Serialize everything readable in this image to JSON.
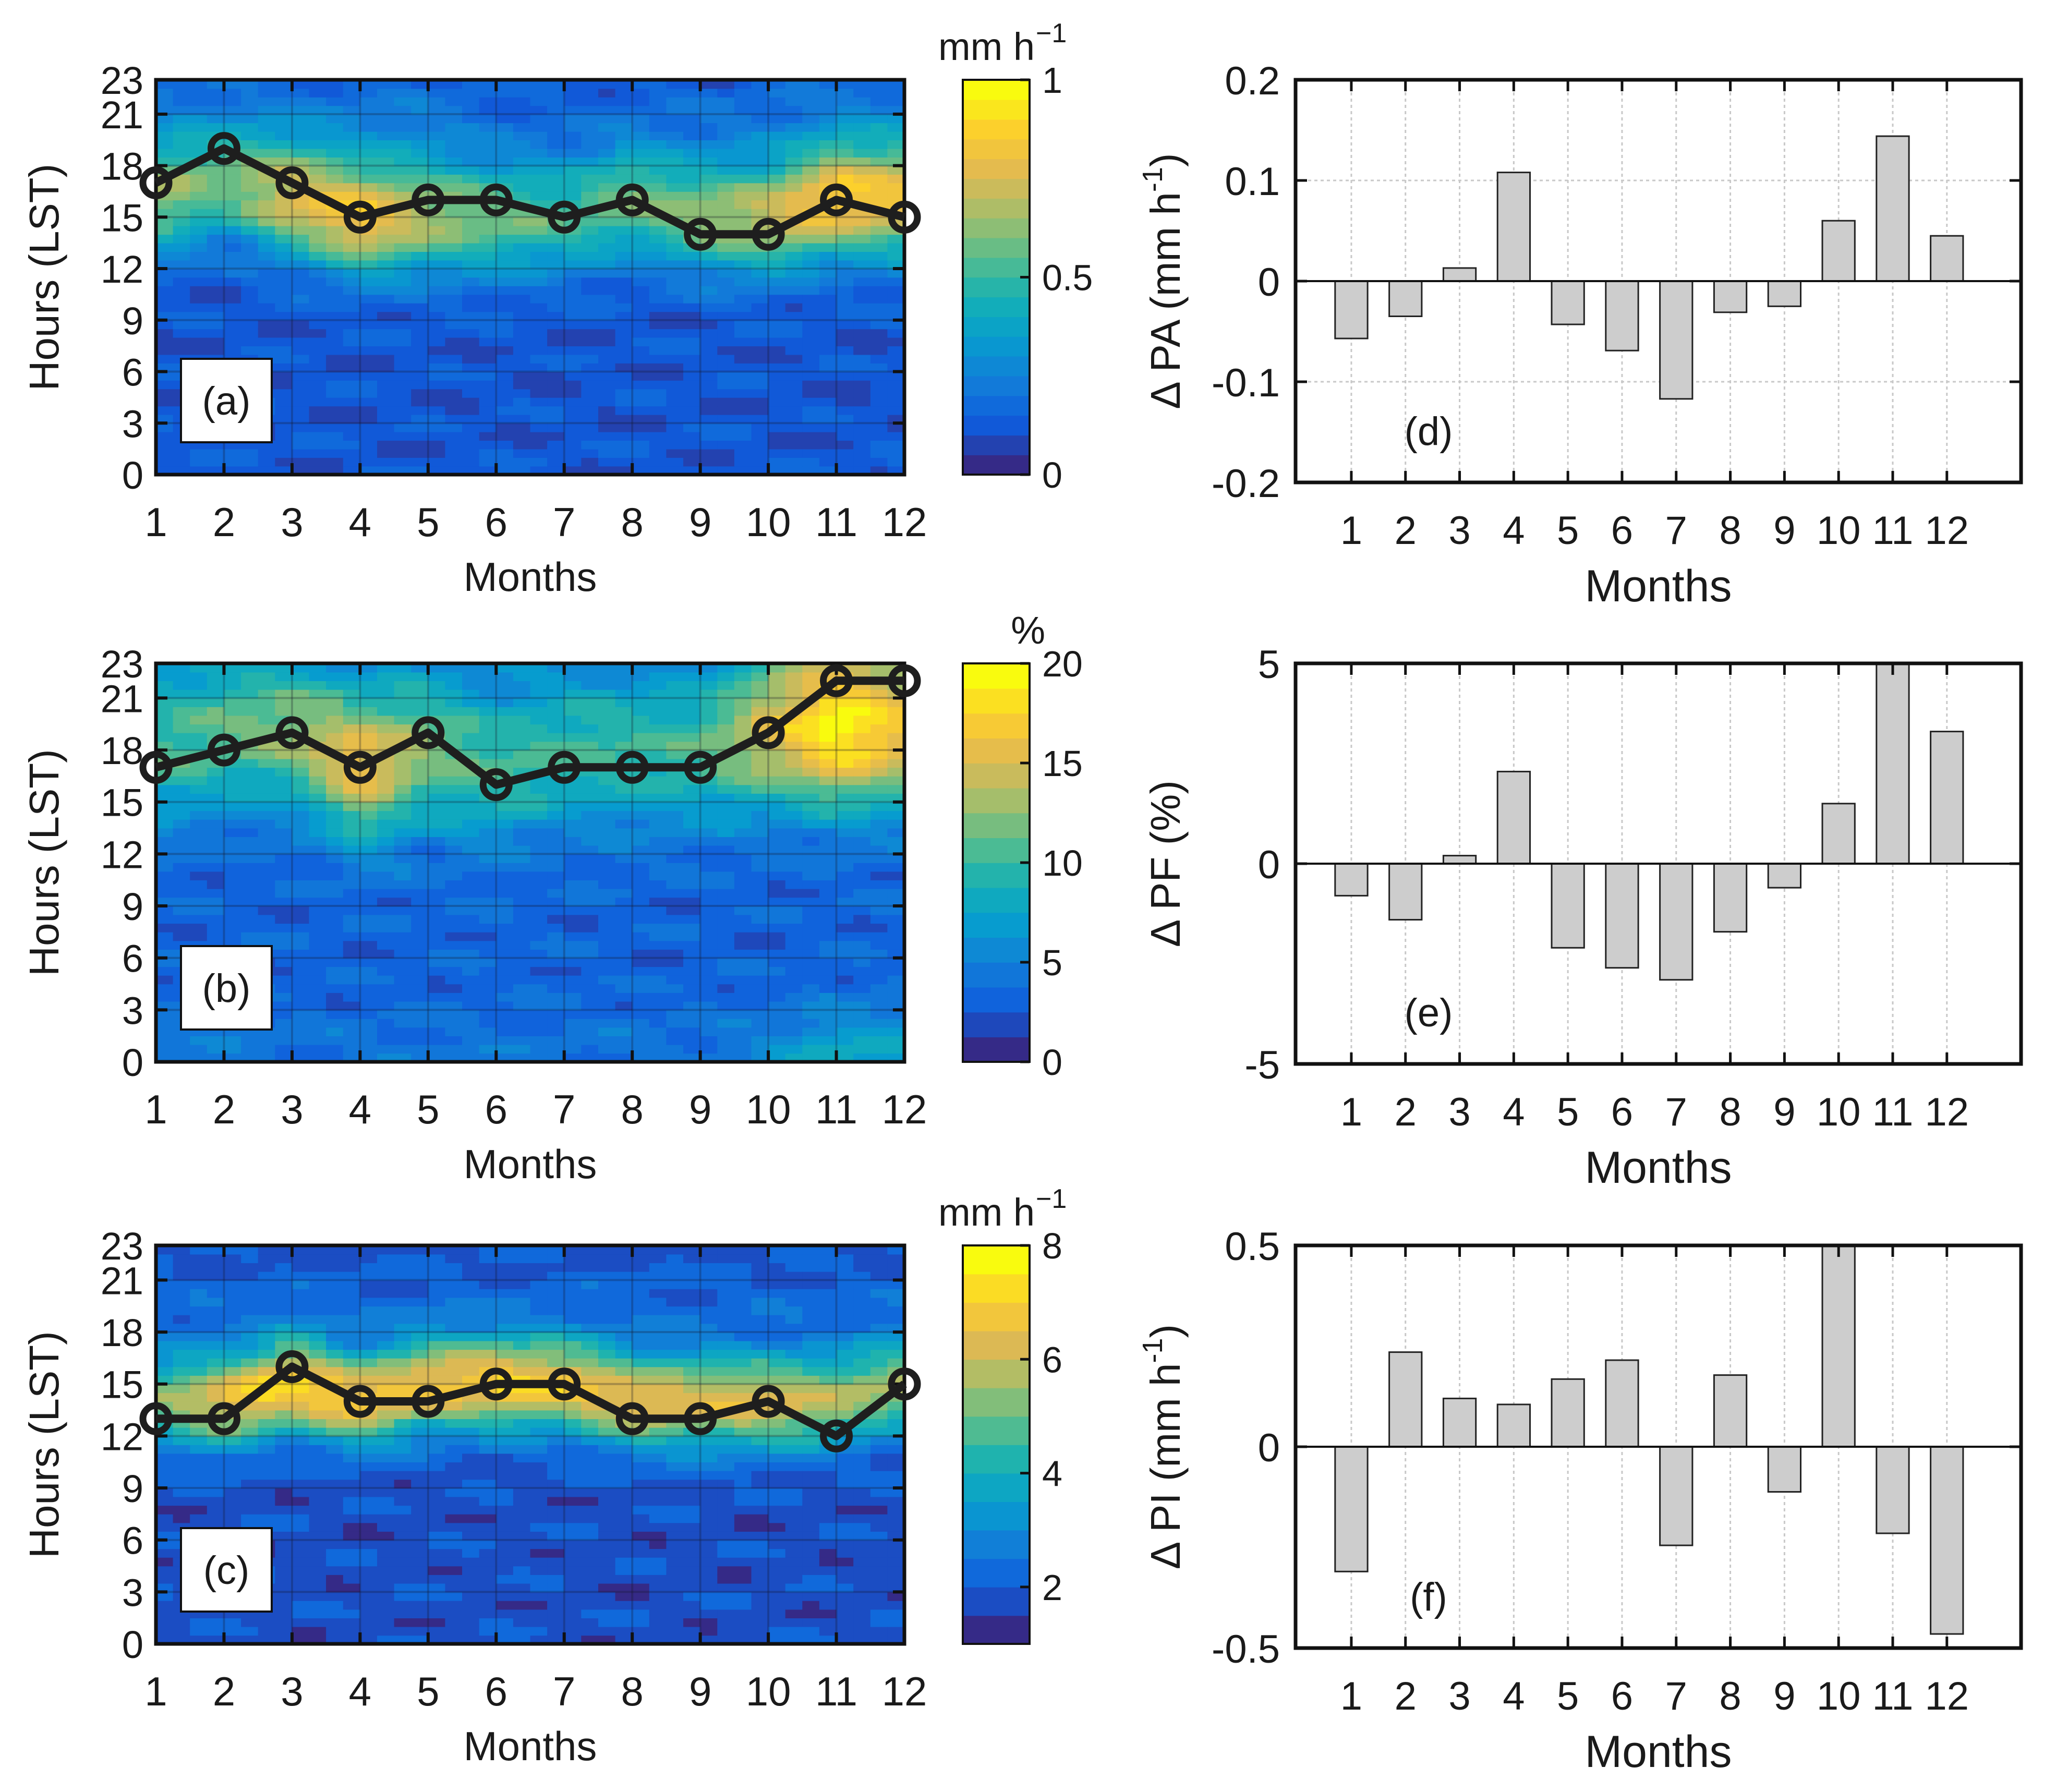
{
  "figure": {
    "background": "#ffffff"
  },
  "chart_data": [
    {
      "panel": "a",
      "type": "heatmap",
      "panel_label": "(a)",
      "xlabel": "Months",
      "ylabel": "Hours (LST)",
      "x_ticks": [
        "1",
        "2",
        "3",
        "4",
        "5",
        "6",
        "7",
        "8",
        "9",
        "10",
        "11",
        "12"
      ],
      "y_ticks": [
        "0",
        "3",
        "6",
        "9",
        "12",
        "15",
        "18",
        "21",
        "23"
      ],
      "xlim": [
        1,
        12
      ],
      "ylim": [
        0,
        23
      ],
      "colorbar": {
        "unit": "mm h",
        "unit_sup": "−1",
        "ticks": [
          "0",
          "0.5",
          "1"
        ],
        "range": [
          0,
          1
        ],
        "levels": 20
      },
      "peak_hours": [
        17,
        19,
        17,
        15,
        16,
        16,
        15,
        16,
        14,
        14,
        16,
        15
      ],
      "surface": {
        "band_center": [
          16,
          17,
          16,
          15,
          15,
          15,
          15,
          16,
          15,
          15,
          16,
          16
        ],
        "band_peak": [
          0.62,
          0.55,
          0.75,
          0.86,
          0.66,
          0.58,
          0.52,
          0.58,
          0.62,
          0.72,
          0.86,
          0.8
        ],
        "band_width": 3.2,
        "night_peak": [
          0.3,
          0.25,
          0.3,
          0.3,
          0.3,
          0.2,
          0.18,
          0.2,
          0.22,
          0.25,
          0.3,
          0.3
        ],
        "night_center": 20,
        "background": 0.12
      }
    },
    {
      "panel": "b",
      "type": "heatmap",
      "panel_label": "(b)",
      "xlabel": "Months",
      "ylabel": "Hours (LST)",
      "x_ticks": [
        "1",
        "2",
        "3",
        "4",
        "5",
        "6",
        "7",
        "8",
        "9",
        "10",
        "11",
        "12"
      ],
      "y_ticks": [
        "0",
        "3",
        "6",
        "9",
        "12",
        "15",
        "18",
        "21",
        "23"
      ],
      "xlim": [
        1,
        12
      ],
      "ylim": [
        0,
        23
      ],
      "colorbar": {
        "unit": "%",
        "unit_sup": "",
        "ticks": [
          "0",
          "5",
          "10",
          "15",
          "20"
        ],
        "range": [
          0,
          20
        ],
        "levels": 16
      },
      "peak_hours": [
        17,
        18,
        19,
        17,
        19,
        16,
        17,
        17,
        17,
        19,
        22,
        22
      ],
      "surface": {
        "band_center": [
          18,
          19,
          19,
          17,
          18,
          17,
          18,
          18,
          18,
          19,
          19,
          19
        ],
        "band_peak": [
          10.5,
          11,
          12.5,
          16.5,
          12,
          10.5,
          10,
          10,
          10.5,
          15,
          19.5,
          16
        ],
        "band_width": 4.2,
        "night_peak": [
          6,
          5,
          5,
          5,
          5,
          5,
          5,
          5,
          5,
          7,
          12,
          10
        ],
        "night_center": 0,
        "background": 3.2
      }
    },
    {
      "panel": "c",
      "type": "heatmap",
      "panel_label": "(c)",
      "xlabel": "Months",
      "ylabel": "Hours (LST)",
      "x_ticks": [
        "1",
        "2",
        "3",
        "4",
        "5",
        "6",
        "7",
        "8",
        "9",
        "10",
        "11",
        "12"
      ],
      "y_ticks": [
        "0",
        "3",
        "6",
        "9",
        "12",
        "15",
        "18",
        "21",
        "23"
      ],
      "xlim": [
        1,
        12
      ],
      "ylim": [
        0,
        23
      ],
      "colorbar": {
        "unit": "mm h",
        "unit_sup": "−1",
        "ticks": [
          "2",
          "4",
          "6",
          "8"
        ],
        "range": [
          1,
          8
        ],
        "levels": 14
      },
      "peak_hours": [
        13,
        13,
        16,
        14,
        14,
        15,
        15,
        13,
        13,
        14,
        12,
        15
      ],
      "surface": {
        "band_center": [
          14,
          14,
          15,
          14,
          15,
          15,
          15,
          14,
          14,
          14,
          14,
          15
        ],
        "band_peak": [
          5,
          6.5,
          7.3,
          6.8,
          6.6,
          6.9,
          6.7,
          6.6,
          6.2,
          6.4,
          5.6,
          5.5
        ],
        "band_width": 2.6,
        "night_peak": [
          2.5,
          2.5,
          2.5,
          2.5,
          2.5,
          2.5,
          2.5,
          2.5,
          2.5,
          2.5,
          2.5,
          2.5
        ],
        "night_center": 19,
        "background": 1.8
      }
    },
    {
      "panel": "d",
      "type": "bar",
      "panel_label": "(d)",
      "xlabel": "Months",
      "ylabel_symbol": "Δ",
      "ylabel_text": "PA (mm h",
      "ylabel_sup": "-1",
      "ylabel_end": ")",
      "categories": [
        "1",
        "2",
        "3",
        "4",
        "5",
        "6",
        "7",
        "8",
        "9",
        "10",
        "11",
        "12"
      ],
      "values": [
        -0.057,
        -0.035,
        0.013,
        0.108,
        -0.043,
        -0.069,
        -0.117,
        -0.031,
        -0.025,
        0.06,
        0.144,
        0.045
      ],
      "ylim": [
        -0.2,
        0.2
      ],
      "y_ticks": [
        {
          "value": 0.2,
          "label": "0.2"
        },
        {
          "value": 0.1,
          "label": "0.1"
        },
        {
          "value": 0,
          "label": "0"
        },
        {
          "value": -0.1,
          "label": "-0.1"
        },
        {
          "value": -0.2,
          "label": "-0.2"
        }
      ],
      "bar_color": "#cdcdcd"
    },
    {
      "panel": "e",
      "type": "bar",
      "panel_label": "(e)",
      "xlabel": "Months",
      "ylabel_symbol": "Δ",
      "ylabel_text": "PF (%)",
      "ylabel_sup": "",
      "ylabel_end": "",
      "categories": [
        "1",
        "2",
        "3",
        "4",
        "5",
        "6",
        "7",
        "8",
        "9",
        "10",
        "11",
        "12"
      ],
      "values": [
        -0.8,
        -1.4,
        0.2,
        2.3,
        -2.1,
        -2.6,
        -2.9,
        -1.7,
        -0.6,
        1.5,
        5.0,
        3.3
      ],
      "ylim": [
        -5,
        5
      ],
      "y_ticks": [
        {
          "value": 5,
          "label": "5"
        },
        {
          "value": 0,
          "label": "0"
        },
        {
          "value": -5,
          "label": "-5"
        }
      ],
      "bar_color": "#cdcdcd"
    },
    {
      "panel": "f",
      "type": "bar",
      "panel_label": "(f)",
      "xlabel": "Months",
      "ylabel_symbol": "Δ",
      "ylabel_text": "PI (mm h",
      "ylabel_sup": "-1",
      "ylabel_end": ")",
      "categories": [
        "1",
        "2",
        "3",
        "4",
        "5",
        "6",
        "7",
        "8",
        "9",
        "10",
        "11",
        "12"
      ],
      "values": [
        -0.31,
        0.235,
        0.12,
        0.105,
        0.168,
        0.215,
        -0.245,
        0.178,
        -0.112,
        0.5,
        -0.215,
        -0.465
      ],
      "ylim": [
        -0.5,
        0.5
      ],
      "y_ticks": [
        {
          "value": 0.5,
          "label": "0.5"
        },
        {
          "value": 0,
          "label": "0"
        },
        {
          "value": -0.5,
          "label": "-0.5"
        }
      ],
      "bar_color": "#cdcdcd"
    }
  ]
}
